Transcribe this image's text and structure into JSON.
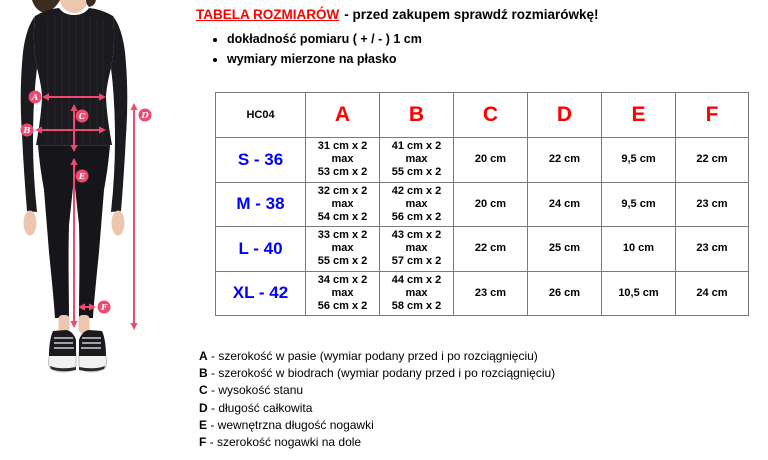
{
  "colors": {
    "accent_red": "#ff0000",
    "size_blue": "#0000ff",
    "measure_pink": "#ee4a70",
    "table_border": "#7b7b7b"
  },
  "header": {
    "title": "TABELA ROZMIARÓW",
    "subtitle": "- przed zakupem sprawdź rozmiarówkę!",
    "bullets": [
      "dokładność pomiaru ( + / - ) 1 cm",
      "wymiary mierzone na płasko"
    ]
  },
  "size_table": {
    "product_code": "HC04",
    "columns": [
      "A",
      "B",
      "C",
      "D",
      "E",
      "F"
    ],
    "rows": [
      {
        "size": "S - 36",
        "cells": [
          [
            "31 cm x 2",
            "max",
            "53 cm x 2"
          ],
          [
            "41 cm x 2",
            "max",
            "55 cm x 2"
          ],
          "20 cm",
          "22 cm",
          "9,5 cm",
          "22 cm"
        ]
      },
      {
        "size": "M - 38",
        "cells": [
          [
            "32 cm x 2",
            "max",
            "54 cm x 2"
          ],
          [
            "42 cm x 2",
            "max",
            "56 cm x 2"
          ],
          "20 cm",
          "24 cm",
          "9,5 cm",
          "23 cm"
        ]
      },
      {
        "size": "L - 40",
        "cells": [
          [
            "33 cm x 2",
            "max",
            "55 cm x 2"
          ],
          [
            "43 cm x 2",
            "max",
            "57 cm x 2"
          ],
          "22 cm",
          "25 cm",
          "10 cm",
          "23 cm"
        ]
      },
      {
        "size": "XL - 42",
        "cells": [
          [
            "34 cm x 2",
            "max",
            "56 cm x 2"
          ],
          [
            "44 cm x 2",
            "max",
            "58 cm x 2"
          ],
          "23 cm",
          "26 cm",
          "10,5 cm",
          "24 cm"
        ]
      }
    ]
  },
  "figure": {
    "measure_labels": [
      "A",
      "B",
      "C",
      "D",
      "E",
      "F"
    ]
  },
  "legend": {
    "separator": "-",
    "items": [
      {
        "letter": "A",
        "text": "szerokość w pasie (wymiar podany przed i po rozciągnięciu)"
      },
      {
        "letter": "B",
        "text": "szerokość w biodrach (wymiar podany przed i po rozciągnięciu)"
      },
      {
        "letter": "C",
        "text": "wysokość stanu"
      },
      {
        "letter": "D",
        "text": "długość całkowita"
      },
      {
        "letter": "E",
        "text": "wewnętrzna długość nogawki"
      },
      {
        "letter": "F",
        "text": "szerokość nogawki na dole"
      }
    ]
  }
}
